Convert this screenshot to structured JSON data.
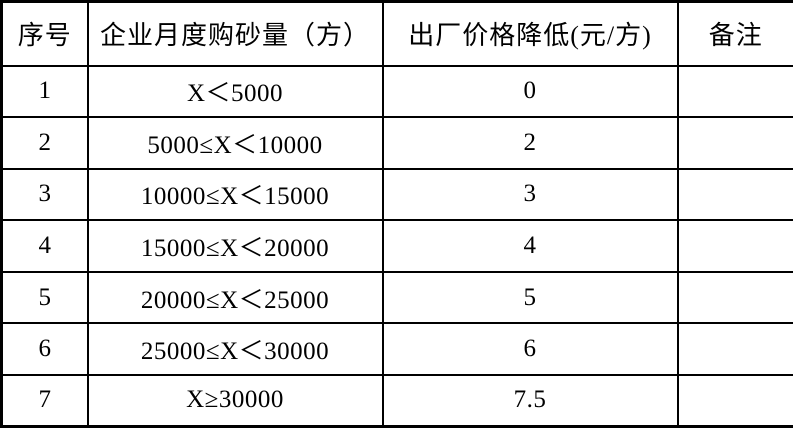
{
  "table": {
    "columns": [
      {
        "label": "序号"
      },
      {
        "label": "企业月度购砂量（方）"
      },
      {
        "label": "出厂价格降低(元/方)"
      },
      {
        "label": "备注"
      }
    ],
    "rows": [
      {
        "seq": "1",
        "volume": "X＜5000",
        "reduction": "0",
        "note": ""
      },
      {
        "seq": "2",
        "volume": "5000≤X＜10000",
        "reduction": "2",
        "note": ""
      },
      {
        "seq": "3",
        "volume": "10000≤X＜15000",
        "reduction": "3",
        "note": ""
      },
      {
        "seq": "4",
        "volume": "15000≤X＜20000",
        "reduction": "4",
        "note": ""
      },
      {
        "seq": "5",
        "volume": "20000≤X＜25000",
        "reduction": "5",
        "note": ""
      },
      {
        "seq": "6",
        "volume": "25000≤X＜30000",
        "reduction": "6",
        "note": ""
      },
      {
        "seq": "7",
        "volume": "X≥30000",
        "reduction": "7.5",
        "note": ""
      }
    ],
    "colors": {
      "border": "#000000",
      "text": "#000000",
      "background": "#ffffff"
    }
  }
}
